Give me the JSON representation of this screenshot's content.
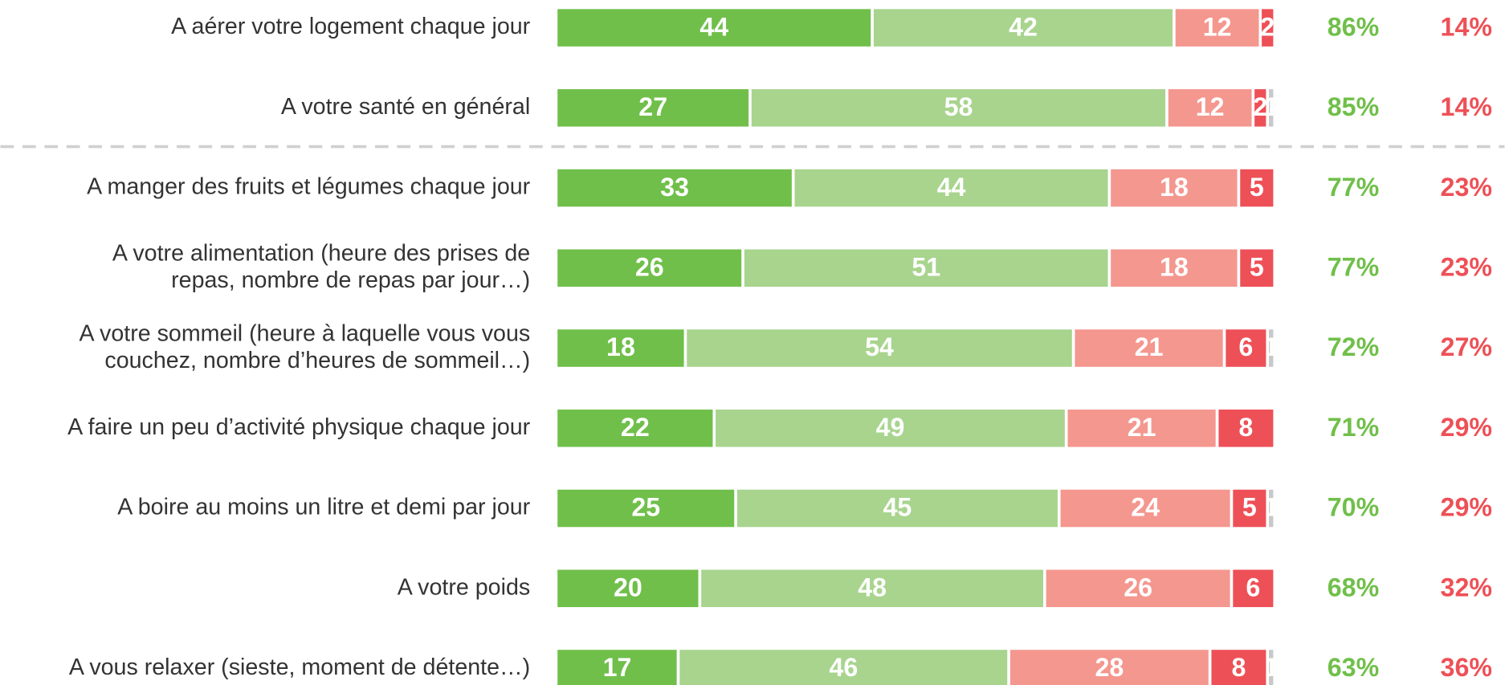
{
  "chart_data": {
    "type": "bar",
    "orientation": "horizontal",
    "stacked": true,
    "categories": [
      [
        "A aérer votre logement chaque jour"
      ],
      [
        "A votre santé en général"
      ],
      [
        "A manger des fruits et légumes chaque jour"
      ],
      [
        "A votre alimentation (heure des prises de",
        "repas, nombre de repas par jour…)"
      ],
      [
        "A votre sommeil (heure à laquelle vous vous",
        "couchez, nombre d’heures de sommeil…)"
      ],
      [
        "A faire un peu d’activité physique chaque jour"
      ],
      [
        "A boire au moins un litre et demi par jour"
      ],
      [
        "A votre poids"
      ],
      [
        "A vous relaxer (sieste, moment de détente…)"
      ]
    ],
    "series": [
      {
        "color": "#70bf4a",
        "values": [
          44,
          27,
          33,
          26,
          18,
          22,
          25,
          20,
          17
        ]
      },
      {
        "color": "#a8d48e",
        "values": [
          42,
          58,
          44,
          51,
          54,
          49,
          45,
          48,
          46
        ]
      },
      {
        "color": "#f4978e",
        "values": [
          12,
          12,
          18,
          18,
          21,
          21,
          24,
          26,
          28
        ]
      },
      {
        "color": "#ee5057",
        "values": [
          2,
          2,
          5,
          5,
          6,
          8,
          5,
          6,
          8
        ]
      },
      {
        "color": "#c8c8c8",
        "values": [
          null,
          1,
          null,
          null,
          1,
          null,
          1,
          null,
          1
        ]
      }
    ],
    "xlim": [
      0,
      100
    ],
    "totals": [
      {
        "color": "#70bf4a",
        "values": [
          86,
          85,
          77,
          77,
          72,
          71,
          70,
          68,
          63
        ],
        "value_labels": [
          "86%",
          "85%",
          "77%",
          "77%",
          "72%",
          "71%",
          "70%",
          "68%",
          "63%"
        ]
      },
      {
        "color": "#ee5057",
        "values": [
          14,
          14,
          23,
          23,
          27,
          29,
          29,
          32,
          36
        ],
        "value_labels": [
          "14%",
          "14%",
          "23%",
          "23%",
          "27%",
          "29%",
          "29%",
          "32%",
          "36%"
        ]
      }
    ]
  }
}
